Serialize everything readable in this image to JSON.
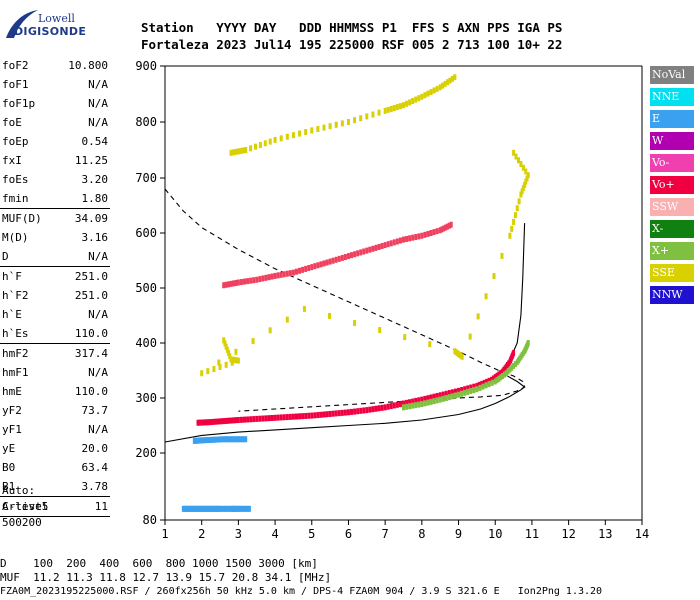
{
  "logo": {
    "line1": "Lowell",
    "line2": "DIGISONDE"
  },
  "header": {
    "labels": "Station   YYYY DAY   DDD HHMMSS P1  FFS S AXN PPS IGA PS",
    "values": "Fortaleza 2023 Jul14 195 225000 RSF 005 2 713 100 10+ 22"
  },
  "params": [
    {
      "label": "foF2",
      "value": "10.800"
    },
    {
      "label": "foF1",
      "value": "N/A"
    },
    {
      "label": "foF1p",
      "value": "N/A"
    },
    {
      "label": "foE",
      "value": "N/A"
    },
    {
      "label": "foEp",
      "value": "0.54"
    },
    {
      "label": "fxI",
      "value": "11.25"
    },
    {
      "label": "foEs",
      "value": "3.20"
    },
    {
      "label": "fmin",
      "value": "1.80"
    },
    {
      "sep": true
    },
    {
      "label": "MUF(D)",
      "value": "34.09"
    },
    {
      "label": "M(D)",
      "value": "3.16"
    },
    {
      "label": "D",
      "value": "N/A"
    },
    {
      "sep": true
    },
    {
      "label": "h`F",
      "value": "251.0"
    },
    {
      "label": "h`F2",
      "value": "251.0"
    },
    {
      "label": "h`E",
      "value": "N/A"
    },
    {
      "label": "h`Es",
      "value": "110.0"
    },
    {
      "sep": true
    },
    {
      "label": "hmF2",
      "value": "317.4"
    },
    {
      "label": "hmF1",
      "value": "N/A"
    },
    {
      "label": "hmE",
      "value": "110.0"
    },
    {
      "label": "yF2",
      "value": "73.7"
    },
    {
      "label": "yF1",
      "value": "N/A"
    },
    {
      "label": "yE",
      "value": "20.0"
    },
    {
      "label": "B0",
      "value": "63.4"
    },
    {
      "label": "B1",
      "value": "3.78"
    },
    {
      "sep": true
    },
    {
      "label": "C-level",
      "value": "11"
    },
    {
      "sep": true
    }
  ],
  "auto": {
    "line1": "Auto:",
    "line2": "Artist5",
    "line3": "500200"
  },
  "legend": [
    {
      "label": "NoVal",
      "color": "#808080"
    },
    {
      "label": "NNE",
      "color": "#00e0f0"
    },
    {
      "label": "E",
      "color": "#3aa0f0"
    },
    {
      "label": "W",
      "color": "#b000b0"
    },
    {
      "label": "Vo-",
      "color": "#f040b0"
    },
    {
      "label": "Vo+",
      "color": "#f00040"
    },
    {
      "label": "SSW",
      "color": "#f8b0b0"
    },
    {
      "label": "X-",
      "color": "#108010"
    },
    {
      "label": "X+",
      "color": "#80c040"
    },
    {
      "label": "SSE",
      "color": "#d8d000"
    },
    {
      "label": "NNW",
      "color": "#2010d0"
    }
  ],
  "footer": {
    "line1": "D    100  200  400  600  800 1000 1500 3000 [km]",
    "line2": "MUF  11.2 11.3 11.8 12.7 13.9 15.7 20.8 34.1 [MHz]",
    "line3": "FZA0M_2023195225000.RSF / 260fx256h 50 kHz 5.0 km / DPS-4 FZA0M 904 / 3.9 S 321.6 E   Ion2Png 1.3.20"
  },
  "chart_data": {
    "type": "scatter",
    "xlim": [
      1,
      14
    ],
    "ylim": [
      80,
      900
    ],
    "x_ticks": [
      1,
      2,
      3,
      4,
      5,
      6,
      7,
      8,
      9,
      10,
      11,
      12,
      13,
      14
    ],
    "y_ticks": [
      80,
      200,
      300,
      400,
      500,
      600,
      700,
      800,
      900
    ],
    "grid": false,
    "legend_position": "right",
    "traces": [
      {
        "name": "O-trace F",
        "color": "#f00040",
        "points": [
          [
            1.9,
            255
          ],
          [
            2.2,
            256
          ],
          [
            2.6,
            258
          ],
          [
            3.0,
            260
          ],
          [
            3.5,
            262
          ],
          [
            4.0,
            264
          ],
          [
            4.5,
            266
          ],
          [
            5.0,
            268
          ],
          [
            5.5,
            271
          ],
          [
            6.0,
            274
          ],
          [
            6.5,
            278
          ],
          [
            7.0,
            283
          ],
          [
            7.5,
            290
          ],
          [
            8.0,
            297
          ],
          [
            8.5,
            305
          ],
          [
            9.0,
            313
          ],
          [
            9.5,
            322
          ],
          [
            9.9,
            333
          ],
          [
            10.2,
            348
          ],
          [
            10.4,
            366
          ],
          [
            10.5,
            382
          ]
        ]
      },
      {
        "name": "X-trace F",
        "color": "#80c040",
        "points": [
          [
            7.5,
            283
          ],
          [
            8.0,
            289
          ],
          [
            8.5,
            297
          ],
          [
            9.0,
            306
          ],
          [
            9.5,
            316
          ],
          [
            10.0,
            330
          ],
          [
            10.3,
            345
          ],
          [
            10.6,
            365
          ],
          [
            10.8,
            385
          ],
          [
            10.9,
            400
          ]
        ]
      },
      {
        "name": "Es",
        "color": "#3aa0f0",
        "points": [
          [
            1.8,
            222
          ],
          [
            2.0,
            223
          ],
          [
            2.3,
            224
          ],
          [
            2.6,
            225
          ],
          [
            2.9,
            225
          ],
          [
            3.2,
            225
          ]
        ]
      },
      {
        "name": "E low",
        "color": "#3aa0f0",
        "points": [
          [
            1.5,
            100
          ],
          [
            1.7,
            100
          ],
          [
            1.9,
            100
          ],
          [
            2.1,
            100
          ],
          [
            2.3,
            100
          ],
          [
            2.5,
            100
          ],
          [
            2.8,
            100
          ],
          [
            3.0,
            100
          ],
          [
            3.3,
            100
          ]
        ]
      },
      {
        "name": "Multihop 2",
        "color": "#f04060",
        "points": [
          [
            2.6,
            505
          ],
          [
            3.0,
            510
          ],
          [
            3.5,
            515
          ],
          [
            4.0,
            522
          ],
          [
            4.5,
            528
          ],
          [
            5.0,
            538
          ],
          [
            5.5,
            548
          ],
          [
            6.0,
            558
          ],
          [
            6.5,
            568
          ],
          [
            7.0,
            578
          ],
          [
            7.5,
            588
          ],
          [
            8.0,
            595
          ],
          [
            8.5,
            605
          ],
          [
            8.8,
            615
          ]
        ]
      },
      {
        "name": "Multihop 3",
        "color": "#d8d000",
        "points": [
          [
            2.8,
            745
          ],
          [
            3.2,
            750
          ],
          [
            4.0,
            768
          ],
          [
            5.0,
            785
          ],
          [
            6.0,
            800
          ],
          [
            7.0,
            820
          ],
          [
            7.5,
            830
          ],
          [
            8.0,
            845
          ],
          [
            8.5,
            862
          ],
          [
            8.9,
            880
          ]
        ]
      },
      {
        "name": "Scattered",
        "color": "#d8d000",
        "points": [
          [
            2.6,
            405
          ],
          [
            2.8,
            370
          ],
          [
            3.0,
            368
          ],
          [
            2.0,
            345
          ],
          [
            4.8,
            462
          ],
          [
            8.9,
            385
          ],
          [
            9.1,
            375
          ],
          [
            10.4,
            595
          ],
          [
            10.7,
            670
          ],
          [
            10.9,
            705
          ],
          [
            10.5,
            745
          ]
        ]
      }
    ],
    "curves": [
      {
        "name": "Profile solid",
        "style": "solid",
        "points": [
          [
            1.0,
            220
          ],
          [
            2.0,
            232
          ],
          [
            3.0,
            238
          ],
          [
            4.0,
            242
          ],
          [
            5.0,
            246
          ],
          [
            6.0,
            250
          ],
          [
            7.0,
            254
          ],
          [
            8.0,
            260
          ],
          [
            9.0,
            270
          ],
          [
            9.6,
            280
          ],
          [
            10.0,
            290
          ],
          [
            10.4,
            303
          ],
          [
            10.7,
            315
          ],
          [
            10.8,
            320
          ],
          [
            10.6,
            330
          ],
          [
            10.2,
            345
          ],
          [
            10.4,
            370
          ],
          [
            10.6,
            400
          ],
          [
            10.7,
            450
          ],
          [
            10.75,
            520
          ],
          [
            10.8,
            618
          ]
        ]
      },
      {
        "name": "Profile dashed",
        "style": "dashed",
        "points": [
          [
            1.0,
            680
          ],
          [
            1.5,
            640
          ],
          [
            2.0,
            610
          ],
          [
            3.0,
            570
          ],
          [
            4.0,
            535
          ],
          [
            5.0,
            505
          ],
          [
            6.0,
            475
          ],
          [
            7.0,
            445
          ],
          [
            8.0,
            415
          ],
          [
            9.0,
            385
          ],
          [
            9.6,
            365
          ],
          [
            10.1,
            350
          ],
          [
            10.5,
            340
          ],
          [
            10.75,
            330
          ],
          [
            10.8,
            320
          ],
          [
            10.6,
            313
          ],
          [
            10.2,
            305
          ],
          [
            9.6,
            302
          ],
          [
            9.0,
            300
          ],
          [
            8.0,
            296
          ],
          [
            7.0,
            292
          ],
          [
            6.0,
            288
          ],
          [
            5.0,
            284
          ],
          [
            4.0,
            280
          ],
          [
            3.0,
            276
          ]
        ]
      }
    ]
  }
}
